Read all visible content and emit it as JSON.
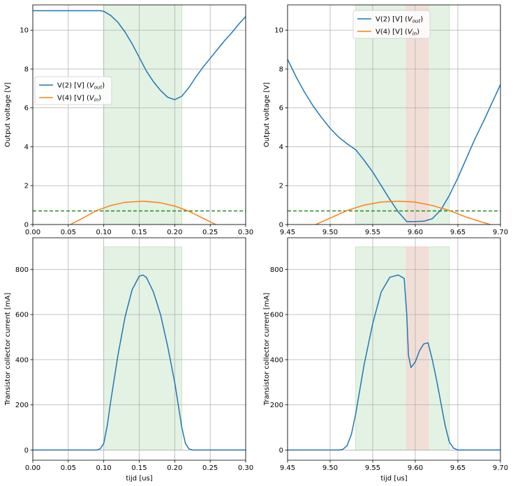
{
  "chart_data": [
    {
      "type": "line",
      "xlim": [
        0.0,
        0.3
      ],
      "ylim": [
        0,
        11.3
      ],
      "xticks": [
        "0.00",
        "0.05",
        "0.10",
        "0.15",
        "0.20",
        "0.25",
        "0.30"
      ],
      "yticks": [
        "0",
        "2",
        "4",
        "6",
        "8",
        "10"
      ],
      "xlabel": "",
      "ylabel": "Output voltage [V]",
      "grid": true,
      "legend": "center-left",
      "spans": [
        {
          "x0": 0.1,
          "x1": 0.21,
          "color": "#c8e6c8"
        }
      ],
      "hline": {
        "y": 0.7,
        "color": "#228b22",
        "style": "dashed"
      },
      "series": [
        {
          "name": "V(2) [V]  (V_out)",
          "legend_main": "V(2) [V]  (",
          "legend_var": "V",
          "legend_sub": "out",
          "legend_end": ")",
          "color": "#1f77b4",
          "x": [
            0.0,
            0.05,
            0.095,
            0.1,
            0.11,
            0.12,
            0.13,
            0.14,
            0.15,
            0.16,
            0.17,
            0.18,
            0.19,
            0.2,
            0.21,
            0.22,
            0.23,
            0.24,
            0.25,
            0.26,
            0.27,
            0.28,
            0.29,
            0.3
          ],
          "y": [
            11.0,
            11.0,
            11.0,
            10.97,
            10.75,
            10.4,
            9.9,
            9.3,
            8.6,
            7.9,
            7.35,
            6.9,
            6.55,
            6.42,
            6.6,
            7.05,
            7.6,
            8.1,
            8.55,
            9.0,
            9.45,
            9.85,
            10.3,
            10.7
          ]
        },
        {
          "name": "V(4) [V]  (V_in)",
          "legend_main": "V(4) [V]  (",
          "legend_var": "V",
          "legend_sub": "in",
          "legend_end": ")",
          "color": "#ff7f0e",
          "x": [
            0.053,
            0.07,
            0.09,
            0.11,
            0.13,
            0.155,
            0.18,
            0.2,
            0.22,
            0.24,
            0.258
          ],
          "y": [
            0.0,
            0.32,
            0.72,
            0.98,
            1.14,
            1.2,
            1.12,
            0.95,
            0.68,
            0.32,
            0.0
          ]
        }
      ]
    },
    {
      "type": "line",
      "xlim": [
        9.45,
        9.7
      ],
      "ylim": [
        0,
        11.3
      ],
      "xticks": [
        "9.45",
        "9.50",
        "9.55",
        "9.60",
        "9.65",
        "9.70"
      ],
      "yticks": [
        "0",
        "2",
        "4",
        "6",
        "8",
        "10"
      ],
      "xlabel": "",
      "ylabel": "Output voltage [V]",
      "grid": true,
      "legend": "top-center",
      "spans": [
        {
          "x0": 9.53,
          "x1": 9.64,
          "color": "#c8e6c8"
        },
        {
          "x0": 9.59,
          "x1": 9.615,
          "color": "#ffcccc"
        }
      ],
      "hline": {
        "y": 0.7,
        "color": "#228b22",
        "style": "dashed"
      },
      "series": [
        {
          "name": "V(2) [V]  (V_out)",
          "legend_main": "V(2) [V]  (",
          "legend_var": "V",
          "legend_sub": "out",
          "legend_end": ")",
          "color": "#1f77b4",
          "x": [
            9.45,
            9.46,
            9.47,
            9.48,
            9.49,
            9.5,
            9.51,
            9.52,
            9.53,
            9.54,
            9.55,
            9.56,
            9.57,
            9.58,
            9.59,
            9.6,
            9.61,
            9.62,
            9.63,
            9.64,
            9.65,
            9.66,
            9.67,
            9.68,
            9.69,
            9.7
          ],
          "y": [
            8.5,
            7.6,
            6.8,
            6.1,
            5.5,
            4.95,
            4.5,
            4.15,
            3.85,
            3.3,
            2.7,
            2.0,
            1.3,
            0.65,
            0.15,
            0.15,
            0.17,
            0.3,
            0.75,
            1.5,
            2.4,
            3.4,
            4.4,
            5.3,
            6.25,
            7.2
          ]
        },
        {
          "name": "V(4) [V]  (V_in)",
          "legend_main": "V(4) [V]  (",
          "legend_var": "V",
          "legend_sub": "in",
          "legend_end": ")",
          "color": "#ff7f0e",
          "x": [
            9.483,
            9.5,
            9.52,
            9.54,
            9.56,
            9.58,
            9.6,
            9.62,
            9.64,
            9.66,
            9.68,
            9.688
          ],
          "y": [
            0.0,
            0.33,
            0.72,
            1.0,
            1.16,
            1.2,
            1.15,
            0.98,
            0.72,
            0.38,
            0.1,
            0.0
          ]
        }
      ]
    },
    {
      "type": "line",
      "xlim": [
        0.0,
        0.3
      ],
      "ylim": [
        -45,
        940
      ],
      "xticks": [
        "0.00",
        "0.05",
        "0.10",
        "0.15",
        "0.20",
        "0.25",
        "0.30"
      ],
      "yticks": [
        "0",
        "200",
        "400",
        "600",
        "800"
      ],
      "xlabel": "tijd [us]",
      "ylabel": "Transistor  collector current [mA]",
      "grid": true,
      "spans": [
        {
          "x0": 0.1,
          "x1": 0.21,
          "y0": 0,
          "y1": 900,
          "color": "#c8e6c8"
        }
      ],
      "series": [
        {
          "name": "",
          "color": "#1f77b4",
          "x": [
            0.0,
            0.09,
            0.095,
            0.1,
            0.105,
            0.11,
            0.12,
            0.13,
            0.14,
            0.15,
            0.155,
            0.16,
            0.17,
            0.18,
            0.19,
            0.2,
            0.205,
            0.21,
            0.215,
            0.22,
            0.225,
            0.3
          ],
          "y": [
            0,
            0,
            5,
            30,
            110,
            220,
            420,
            590,
            710,
            770,
            775,
            765,
            700,
            600,
            460,
            300,
            200,
            100,
            30,
            5,
            0,
            0
          ]
        }
      ]
    },
    {
      "type": "line",
      "xlim": [
        9.45,
        9.7
      ],
      "ylim": [
        -45,
        940
      ],
      "xticks": [
        "9.45",
        "9.50",
        "9.55",
        "9.60",
        "9.65",
        "9.70"
      ],
      "yticks": [
        "0",
        "200",
        "400",
        "600",
        "800"
      ],
      "xlabel": "tijd [us]",
      "ylabel": "Transistor  collector current [mA]",
      "grid": true,
      "spans": [
        {
          "x0": 9.53,
          "x1": 9.64,
          "y0": 0,
          "y1": 900,
          "color": "#c8e6c8"
        },
        {
          "x0": 9.59,
          "x1": 9.615,
          "y0": 0,
          "y1": 900,
          "color": "#ffcccc"
        }
      ],
      "series": [
        {
          "name": "",
          "color": "#1f77b4",
          "x": [
            9.45,
            9.51,
            9.515,
            9.52,
            9.525,
            9.53,
            9.54,
            9.55,
            9.56,
            9.57,
            9.58,
            9.587,
            9.59,
            9.592,
            9.595,
            9.6,
            9.605,
            9.61,
            9.615,
            9.62,
            9.625,
            9.63,
            9.635,
            9.64,
            9.645,
            9.65,
            9.7
          ],
          "y": [
            0,
            0,
            3,
            20,
            70,
            160,
            380,
            560,
            700,
            765,
            775,
            760,
            600,
            420,
            365,
            390,
            440,
            470,
            475,
            400,
            310,
            210,
            110,
            35,
            8,
            0,
            0
          ]
        }
      ]
    }
  ]
}
